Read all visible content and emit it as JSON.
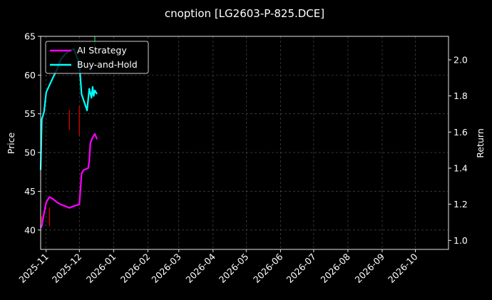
{
  "chart_data": {
    "type": "line",
    "title": "cnoption [LG2603-P-825.DCE]",
    "ylabel": "Price",
    "y2label": "Return",
    "xlim": [
      "2025-10-27",
      "2026-10-31"
    ],
    "ylim": [
      37.5,
      65
    ],
    "y2lim": [
      0.95,
      2.13
    ],
    "yticks": [
      40,
      45,
      50,
      55,
      60,
      65
    ],
    "y2ticks": [
      1.0,
      1.2,
      1.4,
      1.6,
      1.8,
      2.0
    ],
    "y2tick_labels": [
      "1.0",
      "1.2",
      "1.4",
      "1.6",
      "1.8",
      "2.0"
    ],
    "xticks": [
      "2025-11-01",
      "2025-12-01",
      "2026-01-01",
      "2026-02-01",
      "2026-03-01",
      "2026-04-01",
      "2026-05-01",
      "2026-06-01",
      "2026-07-01",
      "2026-08-01",
      "2026-09-01",
      "2026-10-01"
    ],
    "xtick_labels": [
      "2025-11",
      "2025-12",
      "2026-01",
      "2026-02",
      "2026-03",
      "2026-04",
      "2026-05",
      "2026-06",
      "2026-07",
      "2026-08",
      "2026-09",
      "2026-10"
    ],
    "grid": true,
    "legend_position": "top-left",
    "series": [
      {
        "name": "AI Strategy",
        "axis": "right",
        "color": "#ff00ff",
        "points": [
          [
            "2025-10-27",
            1.07
          ],
          [
            "2025-10-28",
            1.08
          ],
          [
            "2025-10-30",
            1.15
          ],
          [
            "2025-11-01",
            1.21
          ],
          [
            "2025-11-04",
            1.24
          ],
          [
            "2025-11-07",
            1.23
          ],
          [
            "2025-11-11",
            1.21
          ],
          [
            "2025-11-14",
            1.2
          ],
          [
            "2025-11-18",
            1.19
          ],
          [
            "2025-11-22",
            1.18
          ],
          [
            "2025-11-26",
            1.19
          ],
          [
            "2025-12-01",
            1.2
          ],
          [
            "2025-12-03",
            1.37
          ],
          [
            "2025-12-05",
            1.39
          ],
          [
            "2025-12-09",
            1.4
          ],
          [
            "2025-12-10",
            1.44
          ],
          [
            "2025-12-11",
            1.54
          ],
          [
            "2025-12-13",
            1.57
          ],
          [
            "2025-12-15",
            1.59
          ],
          [
            "2025-12-17",
            1.56
          ]
        ]
      },
      {
        "name": "Buy-and-Hold",
        "axis": "right",
        "color": "#00ffff",
        "points": [
          [
            "2025-10-27",
            1.39
          ],
          [
            "2025-10-28",
            1.67
          ],
          [
            "2025-10-30",
            1.71
          ],
          [
            "2025-11-01",
            1.82
          ],
          [
            "2025-11-04",
            1.86
          ],
          [
            "2025-11-07",
            1.9
          ],
          [
            "2025-11-11",
            1.95
          ],
          [
            "2025-11-14",
            2.0
          ],
          [
            "2025-11-18",
            2.03
          ],
          [
            "2025-11-22",
            2.05
          ],
          [
            "2025-11-26",
            2.06
          ],
          [
            "2025-12-01",
            1.98
          ],
          [
            "2025-12-03",
            1.81
          ],
          [
            "2025-12-08",
            1.72
          ],
          [
            "2025-12-10",
            1.84
          ],
          [
            "2025-12-12",
            1.79
          ],
          [
            "2025-12-13",
            1.85
          ],
          [
            "2025-12-14",
            1.8
          ],
          [
            "2025-12-15",
            1.83
          ],
          [
            "2025-12-17",
            1.81
          ]
        ]
      }
    ],
    "candles": [
      {
        "date": "2025-10-28",
        "low": 41.0,
        "high": 41.8,
        "up": false
      },
      {
        "date": "2025-11-04",
        "low": 40.5,
        "high": 42.9,
        "up": false
      },
      {
        "date": "2025-11-22",
        "low": 52.9,
        "high": 55.5,
        "up": false
      },
      {
        "date": "2025-12-01",
        "low": 52.2,
        "high": 56.0,
        "up": false
      },
      {
        "date": "2025-12-15",
        "low": 63.2,
        "high": 65.0,
        "up": true
      }
    ]
  }
}
